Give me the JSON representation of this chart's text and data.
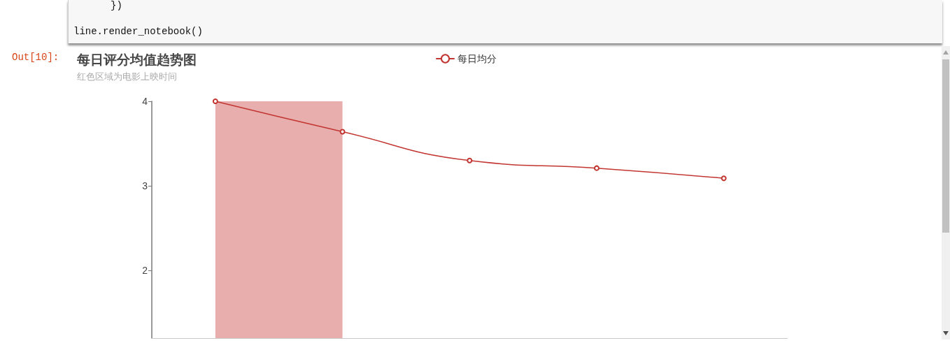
{
  "chart_data": {
    "type": "line",
    "title": "每日评分均值趋势图",
    "subtitle": "红色区域为电影上映时间",
    "annotations": [
      "})",
      "line.render_notebook()",
      "Out[10]:"
    ],
    "categories": [
      null,
      null,
      null,
      null,
      null
    ],
    "series": [
      {
        "type": "area",
        "color": "#e7aead",
        "values": [
          4,
          4,
          null,
          null,
          null
        ]
      },
      {
        "name": "每日均分",
        "color": "#c23531",
        "marker": "circle",
        "line_style": "solid",
        "values": [
          4.0,
          3.64,
          3.3,
          3.21,
          3.09
        ]
      }
    ],
    "ylim": [
      1.2,
      4
    ],
    "yticks": [
      2,
      3,
      4
    ],
    "legend": "top",
    "tick_labels": "y"
  }
}
